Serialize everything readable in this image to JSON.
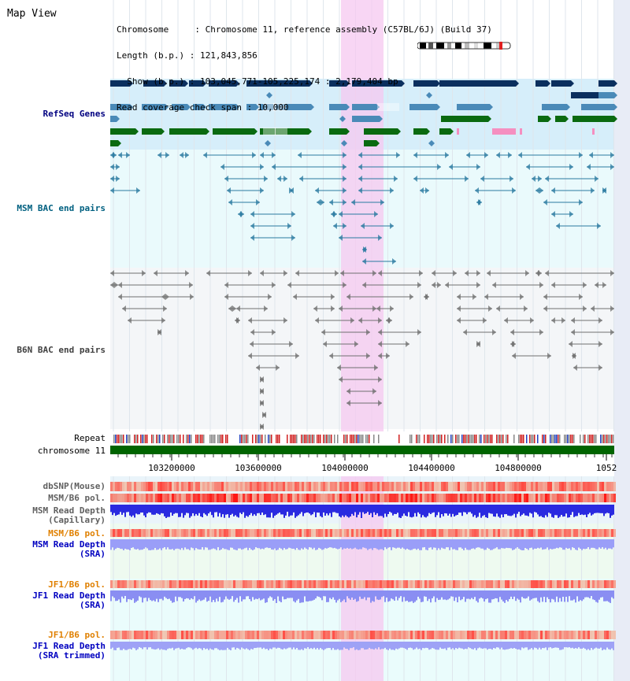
{
  "title": "Map View",
  "info": {
    "line1": "Chromosome     : Chromosome 11, reference assembly (C57BL/6J) (Build 37)",
    "line2": "Length (b.p.) : 121,843,856",
    "line3": "  Show (b.p.) : 103,045,771-105,225,174 : 2,179,404 bp",
    "line4": "Read coverage check span : 10,000"
  },
  "tracks": {
    "refseq": "RefSeq Genes",
    "msm_bac": "MSM BAC end pairs",
    "b6n_bac": "B6N BAC end pairs",
    "repeat": "Repeat",
    "chromosome": "chromosome 11",
    "dbsnp": "dbSNP(Mouse)",
    "msm_b6_pol": "MSM/B6 pol.",
    "msm_read_depth_cap": "MSM Read Depth\n(Capillary)",
    "msm_b6_pol2": "MSM/B6 pol.",
    "msm_read_depth_sra": "MSM Read Depth\n(SRA)",
    "jf1_b6_pol": "JF1/B6 pol.",
    "jf1_read_depth_sra": "JF1 Read Depth\n(SRA)",
    "jf1_b6_pol2": "JF1/B6 pol.",
    "jf1_read_depth_trim": "JF1 Read Depth\n(SRA trimmed)"
  },
  "axis": {
    "ticks": [
      "103200000",
      "103600000",
      "104000000",
      "104400000",
      "104800000",
      "1052"
    ]
  },
  "colors": {
    "refseq_label": "#000080",
    "msm_label": "#006080",
    "orange_label": "#e08000",
    "highlight": "#f5c8f0",
    "chrom_bar": "#006400"
  }
}
